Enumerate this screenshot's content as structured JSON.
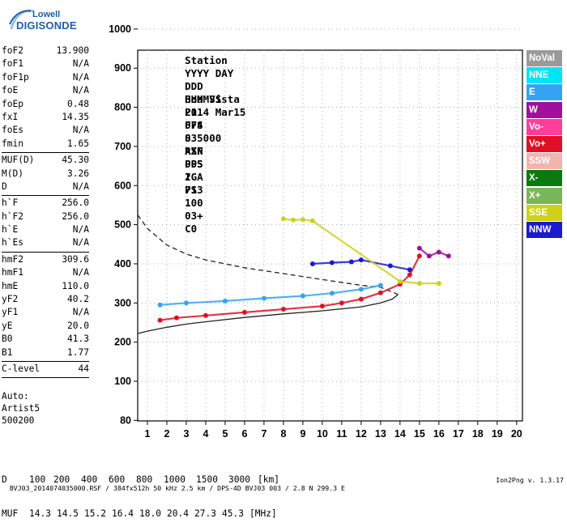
{
  "logo": {
    "line1": "Lowell",
    "line2": "DIGISONDE"
  },
  "header": {
    "columns": [
      "Station",
      "YYYY DAY",
      "DDD",
      "HHMMSS",
      "P1",
      "FFS",
      "S",
      "AXN",
      "PPS",
      "IGA",
      "PS"
    ],
    "values": [
      "Boa Vista",
      "2014 Mar15",
      "074",
      "035000",
      "RSF",
      "005",
      "2",
      "713",
      "100",
      "03+",
      "C0"
    ]
  },
  "params": {
    "group1": [
      {
        "label": "foF2",
        "value": "13.900"
      },
      {
        "label": "foF1",
        "value": "N/A"
      },
      {
        "label": "foF1p",
        "value": "N/A"
      },
      {
        "label": "foE",
        "value": "N/A"
      },
      {
        "label": "foEp",
        "value": "0.48"
      },
      {
        "label": "fxI",
        "value": "14.35"
      },
      {
        "label": "foEs",
        "value": "N/A"
      },
      {
        "label": "fmin",
        "value": "1.65"
      }
    ],
    "group2": [
      {
        "label": "MUF(D)",
        "value": "45.30"
      },
      {
        "label": "M(D)",
        "value": "3.26"
      },
      {
        "label": "D",
        "value": "N/A"
      }
    ],
    "group3": [
      {
        "label": "h`F",
        "value": "256.0"
      },
      {
        "label": "h`F2",
        "value": "256.0"
      },
      {
        "label": "h`E",
        "value": "N/A"
      },
      {
        "label": "h`Es",
        "value": "N/A"
      }
    ],
    "group4": [
      {
        "label": "hmF2",
        "value": "309.6"
      },
      {
        "label": "hmF1",
        "value": "N/A"
      },
      {
        "label": "hmE",
        "value": "110.0"
      },
      {
        "label": "yF2",
        "value": "40.2"
      },
      {
        "label": "yF1",
        "value": "N/A"
      },
      {
        "label": "yE",
        "value": "20.0"
      },
      {
        "label": "B0",
        "value": "41.3"
      },
      {
        "label": "B1",
        "value": "1.77"
      }
    ],
    "group5": [
      {
        "label": "C-level",
        "value": "44"
      }
    ]
  },
  "auto": {
    "line1": "Auto:",
    "line2": "Artist5",
    "line3": "500200"
  },
  "muf_table": {
    "d_label": "D",
    "d_values": [
      "100",
      "200",
      "400",
      "600",
      "800",
      "1000",
      "1500",
      "3000"
    ],
    "d_unit": "[km]",
    "muf_label": "MUF",
    "muf_values": [
      "14.3",
      "14.5",
      "15.2",
      "16.4",
      "18.0",
      "20.4",
      "27.3",
      "45.3"
    ],
    "muf_unit": "[MHz]"
  },
  "footer": {
    "left": "BVJ03_2014074035000.RSF / 384fx512h 50 kHz 2.5 km / DPS-4D BVJ03 003 / 2.8 N 299.3 E",
    "right": "Ion2Png v. 1.3.17"
  },
  "legend": [
    {
      "label": "NoVal",
      "color": "#9a9a9a"
    },
    {
      "label": "NNE",
      "color": "#00e5f5"
    },
    {
      "label": "E",
      "color": "#34a4f2"
    },
    {
      "label": "W",
      "color": "#a0109c"
    },
    {
      "label": "Vo-",
      "color": "#ff3d9a"
    },
    {
      "label": "Vo+",
      "color": "#e01024"
    },
    {
      "label": "SSW",
      "color": "#f2b4ae"
    },
    {
      "label": "X-",
      "color": "#0a7a10"
    },
    {
      "label": "X+",
      "color": "#79b65a"
    },
    {
      "label": "SSE",
      "color": "#cdd11a"
    },
    {
      "label": "NNW",
      "color": "#1a1ad0"
    }
  ],
  "chart_data": {
    "type": "scatter",
    "xlabel": "",
    "ylabel": "",
    "xlim": [
      0.5,
      20.3
    ],
    "ylim": [
      80,
      1200
    ],
    "xticks": [
      1,
      2,
      3,
      4,
      5,
      6,
      7,
      8,
      9,
      10,
      11,
      12,
      13,
      14,
      15,
      16,
      17,
      18,
      19,
      20
    ],
    "yticks": [
      80,
      100,
      200,
      300,
      400,
      500,
      600,
      700,
      800,
      900,
      1000,
      1100,
      1200
    ],
    "grid": true,
    "series": [
      {
        "name": "Vo+",
        "x": [
          1.65,
          2.5,
          4,
          6,
          8,
          10,
          11,
          12,
          13,
          14,
          14.5,
          15.0
        ],
        "y": [
          256,
          262,
          268,
          276,
          284,
          292,
          300,
          310,
          326,
          348,
          372,
          420
        ]
      },
      {
        "name": "E",
        "x": [
          1.65,
          3,
          5,
          7,
          9,
          10.5,
          12,
          13
        ],
        "y": [
          295,
          300,
          305,
          312,
          318,
          325,
          335,
          345
        ]
      },
      {
        "name": "NNW",
        "x": [
          9.5,
          10.5,
          11.5,
          12,
          13.5,
          14.5
        ],
        "y": [
          400,
          403,
          405,
          410,
          395,
          385
        ]
      },
      {
        "name": "SSE",
        "x": [
          8,
          8.5,
          9,
          9.5,
          14,
          15,
          16
        ],
        "y": [
          515,
          512,
          513,
          510,
          355,
          350,
          350
        ]
      },
      {
        "name": "W",
        "x": [
          15,
          15.5,
          16,
          16.5
        ],
        "y": [
          440,
          420,
          430,
          420
        ]
      }
    ],
    "curves": [
      {
        "name": "profile",
        "style": "solid",
        "x": [
          0.5,
          1,
          2,
          3,
          4,
          6,
          8,
          10,
          12,
          13,
          13.6,
          13.9
        ],
        "y": [
          222,
          228,
          238,
          246,
          252,
          263,
          272,
          280,
          290,
          300,
          310,
          322
        ]
      },
      {
        "name": "extrapolation",
        "style": "dashed",
        "x": [
          0.5,
          1,
          2,
          3,
          4,
          6,
          8,
          10,
          12,
          13,
          13.9
        ],
        "y": [
          525,
          490,
          448,
          425,
          410,
          390,
          375,
          360,
          345,
          340,
          322
        ]
      }
    ]
  }
}
